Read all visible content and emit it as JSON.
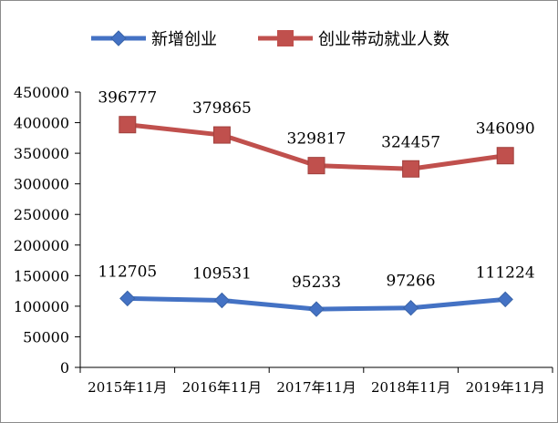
{
  "chart_data": {
    "type": "line",
    "categories": [
      "2015年11月",
      "2016年11月",
      "2017年11月",
      "2018年11月",
      "2019年11月"
    ],
    "series": [
      {
        "name": "新增创业",
        "values": [
          112705,
          109531,
          95233,
          97266,
          111224
        ],
        "color": "#4472C4",
        "marker": "diamond"
      },
      {
        "name": "创业带动就业人数",
        "values": [
          396777,
          379865,
          329817,
          324457,
          346090
        ],
        "color": "#C0504D",
        "marker": "square"
      }
    ],
    "ylim": [
      0,
      450000
    ],
    "yticks": [
      "0",
      "50000",
      "100000",
      "150000",
      "200000",
      "250000",
      "300000",
      "350000",
      "400000",
      "450000"
    ],
    "ytick_values": [
      0,
      50000,
      100000,
      150000,
      200000,
      250000,
      300000,
      350000,
      400000,
      450000
    ],
    "title": "",
    "xlabel": "",
    "ylabel": "",
    "grid": false,
    "legend_position": "top",
    "data_labels": true
  }
}
